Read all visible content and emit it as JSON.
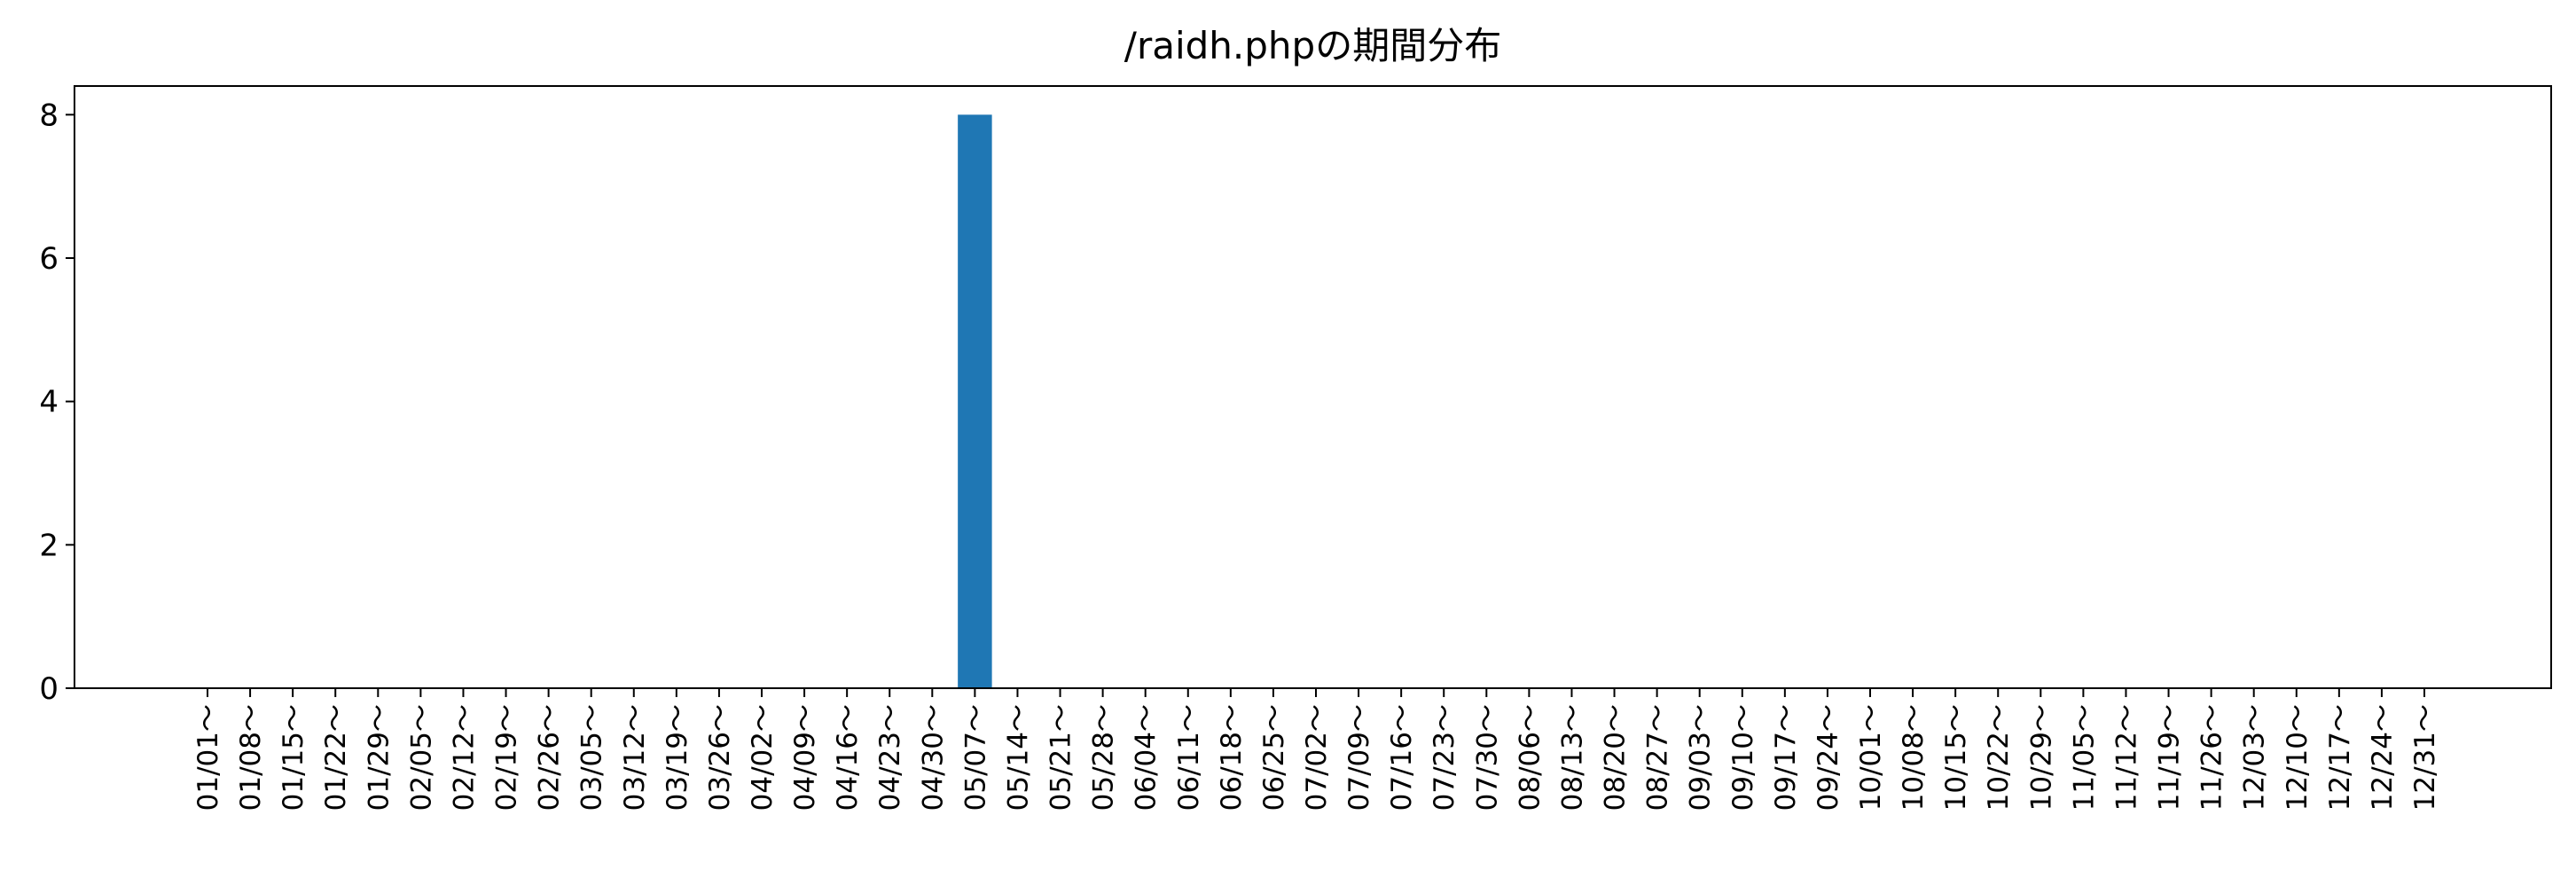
{
  "chart_data": {
    "type": "bar",
    "title": "/raidh.phpの期間分布",
    "xlabel": "",
    "ylabel": "",
    "ylim": [
      0,
      8.4
    ],
    "yticks": [
      0,
      2,
      4,
      6,
      8
    ],
    "bar_color": "#1f77b4",
    "grid": false,
    "legend": "none",
    "categories": [
      "01/01～",
      "01/08～",
      "01/15～",
      "01/22～",
      "01/29～",
      "02/05～",
      "02/12～",
      "02/19～",
      "02/26～",
      "03/05～",
      "03/12～",
      "03/19～",
      "03/26～",
      "04/02～",
      "04/09～",
      "04/16～",
      "04/23～",
      "04/30～",
      "05/07～",
      "05/14～",
      "05/21～",
      "05/28～",
      "06/04～",
      "06/11～",
      "06/18～",
      "06/25～",
      "07/02～",
      "07/09～",
      "07/16～",
      "07/23～",
      "07/30～",
      "08/06～",
      "08/13～",
      "08/20～",
      "08/27～",
      "09/03～",
      "09/10～",
      "09/17～",
      "09/24～",
      "10/01～",
      "10/08～",
      "10/15～",
      "10/22～",
      "10/29～",
      "11/05～",
      "11/12～",
      "11/19～",
      "11/26～",
      "12/03～",
      "12/10～",
      "12/17～",
      "12/24～",
      "12/31～"
    ],
    "values": [
      0,
      0,
      0,
      0,
      0,
      0,
      0,
      0,
      0,
      0,
      0,
      0,
      0,
      0,
      0,
      0,
      0,
      0,
      8,
      0,
      0,
      0,
      0,
      0,
      0,
      0,
      0,
      0,
      0,
      0,
      0,
      0,
      0,
      0,
      0,
      0,
      0,
      0,
      0,
      0,
      0,
      0,
      0,
      0,
      0,
      0,
      0,
      0,
      0,
      0,
      0,
      0,
      0
    ]
  }
}
